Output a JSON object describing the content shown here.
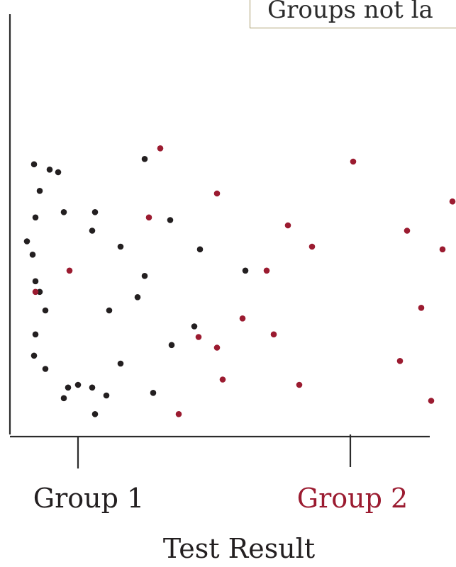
{
  "annotation": "Groups not la",
  "colors": {
    "axis": "#2b2b2b",
    "group1": "#231f20",
    "group2": "#9b1b30",
    "annotation_border": "#a89a6a"
  },
  "chart_data": {
    "type": "scatter",
    "title": "",
    "xlabel": "Test Result",
    "ylabel": "",
    "categories": [
      "Group 1",
      "Group 2"
    ],
    "grid": false,
    "legend": "none",
    "series": [
      {
        "name": "Group 1",
        "color": "#231f20",
        "points": [
          [
            0.04,
            0.66
          ],
          [
            0.08,
            0.61
          ],
          [
            0.09,
            0.95
          ],
          [
            0.13,
            0.47
          ],
          [
            0.13,
            0.85
          ],
          [
            0.17,
            0.18
          ],
          [
            0.26,
            0.92
          ],
          [
            0.3,
            0.07
          ],
          [
            0.2,
            0.93
          ],
          [
            0.3,
            0.77
          ],
          [
            0.33,
            0.11
          ],
          [
            0.1,
            0.31
          ],
          [
            0.09,
            0.23
          ],
          [
            0.17,
            0.4
          ],
          [
            0.1,
            0.75
          ],
          [
            0.1,
            0.51
          ],
          [
            0.4,
            0.12
          ],
          [
            0.5,
            0.11
          ],
          [
            0.5,
            0.7
          ],
          [
            0.52,
            0.01
          ],
          [
            0.52,
            0.77
          ],
          [
            0.6,
            0.08
          ],
          [
            0.62,
            0.4
          ],
          [
            0.7,
            0.2
          ],
          [
            0.7,
            0.64
          ],
          [
            0.82,
            0.45
          ],
          [
            0.87,
            0.53
          ],
          [
            0.87,
            0.97
          ],
          [
            0.93,
            0.09
          ],
          [
            1.05,
            0.74
          ],
          [
            1.06,
            0.27
          ],
          [
            1.22,
            0.34
          ],
          [
            1.26,
            0.63
          ],
          [
            1.58,
            0.55
          ]
        ]
      },
      {
        "name": "Group 2",
        "color": "#9b1b30",
        "points": [
          [
            0.1,
            0.47
          ],
          [
            0.34,
            0.55
          ],
          [
            0.9,
            0.75
          ],
          [
            0.98,
            1.01
          ],
          [
            1.11,
            0.01
          ],
          [
            1.25,
            0.3
          ],
          [
            1.38,
            0.26
          ],
          [
            1.38,
            0.84
          ],
          [
            1.42,
            0.14
          ],
          [
            1.56,
            0.37
          ],
          [
            1.73,
            0.55
          ],
          [
            1.78,
            0.31
          ],
          [
            1.88,
            0.72
          ],
          [
            1.96,
            0.12
          ],
          [
            2.05,
            0.64
          ],
          [
            2.34,
            0.96
          ],
          [
            2.67,
            0.21
          ],
          [
            2.72,
            0.7
          ],
          [
            2.82,
            0.41
          ],
          [
            2.89,
            0.06
          ],
          [
            2.97,
            0.63
          ],
          [
            3.04,
            0.81
          ]
        ]
      }
    ]
  }
}
